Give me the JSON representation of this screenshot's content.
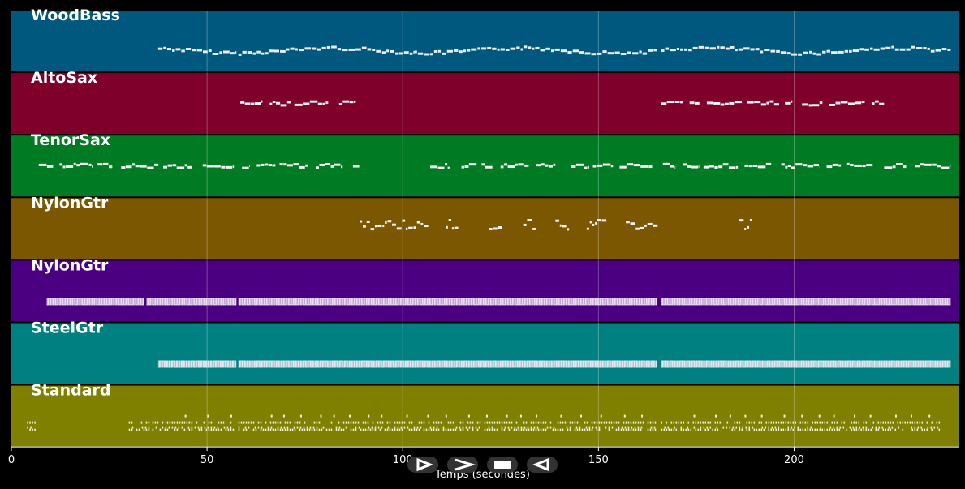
{
  "chart_data": {
    "type": "piano-roll",
    "x_range": [
      0,
      242
    ],
    "x_ticks": [
      0,
      50,
      100,
      150,
      200
    ],
    "xlabel": "Temps (secondes)",
    "grid": true,
    "tracks": [
      {
        "name": "WoodBass",
        "color": "#00587f",
        "style": "bass",
        "segments": [
          [
            37.5,
            57.5
          ],
          [
            58,
            103
          ],
          [
            103,
            165
          ],
          [
            166,
            240
          ]
        ]
      },
      {
        "name": "AltoSax",
        "color": "#7e002b",
        "style": "melody",
        "segments": [
          [
            58.5,
            88
          ],
          [
            166,
            223
          ]
        ]
      },
      {
        "name": "TenorSax",
        "color": "#007b24",
        "style": "melody",
        "segments": [
          [
            7,
            89
          ],
          [
            107,
            114
          ],
          [
            115,
            123
          ],
          [
            125,
            139
          ],
          [
            143,
            240
          ]
        ]
      },
      {
        "name": "NylonGtr",
        "color": "#7a5700",
        "style": "sparse",
        "segments": [
          [
            89,
            106
          ],
          [
            111,
            114
          ],
          [
            122,
            125
          ],
          [
            131,
            134
          ],
          [
            139,
            142
          ],
          [
            147,
            151
          ],
          [
            157,
            165
          ],
          [
            186,
            189
          ]
        ]
      },
      {
        "name": "NylonGtr",
        "color": "#4b0082",
        "style": "chords",
        "segments": [
          [
            9,
            34
          ],
          [
            34.5,
            57.5
          ],
          [
            58,
            165
          ],
          [
            166,
            240
          ]
        ]
      },
      {
        "name": "SteelGtr",
        "color": "#008080",
        "style": "chords",
        "segments": [
          [
            37.5,
            57.5
          ],
          [
            58,
            165
          ],
          [
            166,
            240
          ]
        ]
      },
      {
        "name": "Standard",
        "color": "#7f7f00",
        "style": "drums",
        "segments": [
          [
            4,
            6
          ],
          [
            30,
            35
          ],
          [
            36,
            57
          ],
          [
            58,
            165
          ],
          [
            166,
            237
          ]
        ]
      }
    ]
  },
  "controls": [
    {
      "name": "play-button",
      "glyph": "play-outline-icon"
    },
    {
      "name": "forward-button",
      "glyph": "chevron-right-icon"
    },
    {
      "name": "stop-button",
      "glyph": "stop-icon"
    },
    {
      "name": "rewind-button",
      "glyph": "triangle-left-outline-icon"
    }
  ]
}
